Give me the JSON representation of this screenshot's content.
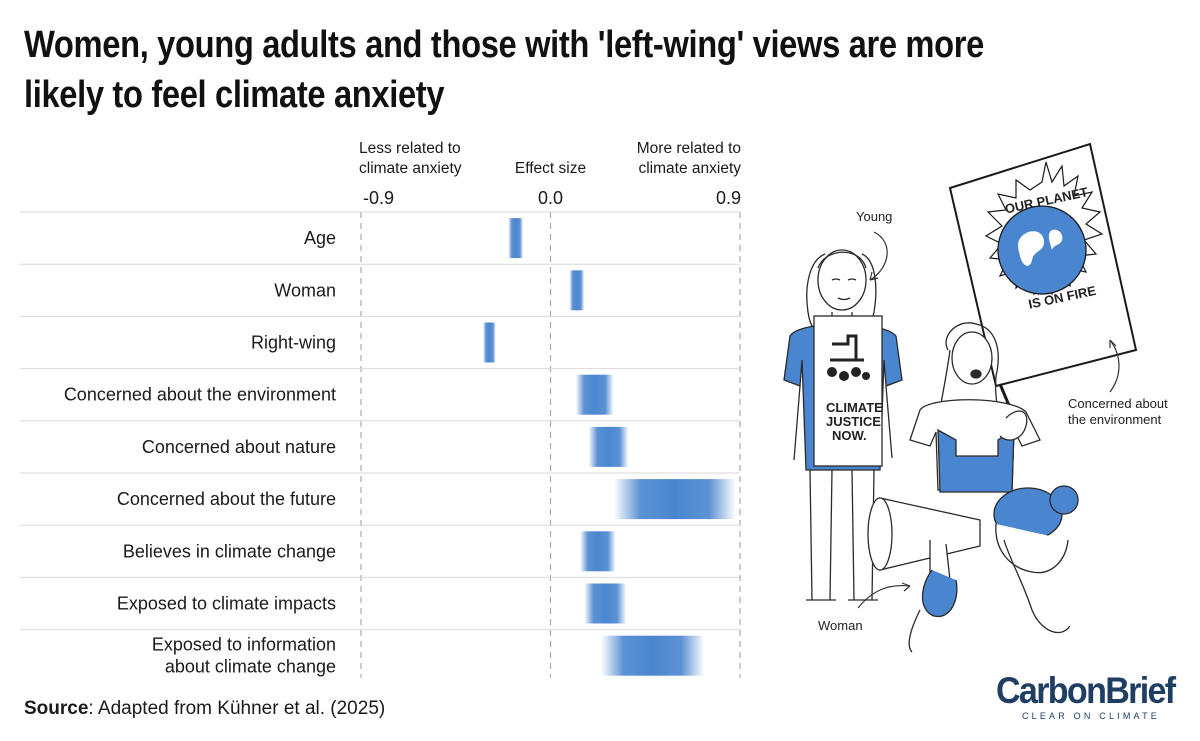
{
  "title": "Women, young adults and those with 'left-wing' views are more likely to feel climate anxiety",
  "source": {
    "label": "Source",
    "text": ": Adapted from Kühner et al. (2025)"
  },
  "colors": {
    "bar": "#4a86cf",
    "text": "#1a1a1a",
    "brand": "#1f3e63"
  },
  "illustration": {
    "labels": {
      "young": "Young",
      "concerned": [
        "Concerned about",
        "the environment"
      ],
      "woman": "Woman"
    },
    "sign_text": "OUR PLANET IS ON FIRE",
    "shirt_text": [
      "CLIMATE",
      "JUSTICE",
      "NOW."
    ]
  },
  "logo": {
    "name": "CarbonBrief",
    "tagline": "CLEAR ON CLIMATE"
  },
  "chart_data": {
    "type": "bar",
    "orientation": "horizontal",
    "xlabel": "Effect size",
    "left_annotation": [
      "Less related to",
      "climate anxiety"
    ],
    "right_annotation": [
      "More related to",
      "climate anxiety"
    ],
    "xlim": [
      -0.9,
      0.9
    ],
    "ticks": [
      -0.9,
      0.0,
      0.9
    ],
    "tick_labels": [
      "-0.9",
      "0.0",
      "0.9"
    ],
    "grid": "dashed vertical lines at ticks",
    "categories": [
      [
        "Age"
      ],
      [
        "Woman"
      ],
      [
        "Right-wing"
      ],
      [
        "Concerned about the environment"
      ],
      [
        "Concerned about nature"
      ],
      [
        "Concerned about the future"
      ],
      [
        "Believes in climate change"
      ],
      [
        "Exposed to climate impacts"
      ],
      [
        "Exposed to information",
        "about climate change"
      ]
    ],
    "intervals": [
      [
        -0.2,
        -0.13
      ],
      [
        0.09,
        0.16
      ],
      [
        -0.32,
        -0.26
      ],
      [
        0.12,
        0.3
      ],
      [
        0.18,
        0.37
      ],
      [
        0.3,
        0.88
      ],
      [
        0.14,
        0.31
      ],
      [
        0.16,
        0.36
      ],
      [
        0.24,
        0.73
      ]
    ]
  }
}
